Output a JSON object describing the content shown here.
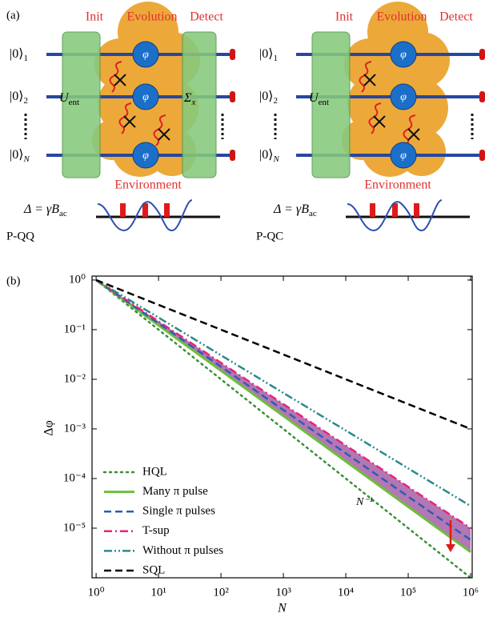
{
  "diagram": {
    "label": "(a)",
    "stages": [
      "Init",
      "Evolution",
      "Detect"
    ],
    "qubits": [
      {
        "ket": "|0⟩",
        "sub": "1"
      },
      {
        "ket": "|0⟩",
        "sub": "2"
      },
      {
        "ket": "|0⟩",
        "sub": "N"
      }
    ],
    "phase": "φ",
    "entangler": {
      "main": "U",
      "sub": "ent"
    },
    "readout": {
      "main": "Σ",
      "sub": "x"
    },
    "environment": "Environment",
    "signal": {
      "main": "Δ = γB",
      "sub": "ac"
    },
    "panels": [
      "P-QQ",
      "P-QC"
    ]
  },
  "chart_data": {
    "type": "line",
    "label": "(b)",
    "xlabel": "N",
    "ylabel": "Δφ",
    "annotation": "N⁻¹",
    "xscale": "log",
    "yscale": "log",
    "legend": "lower left",
    "x": [
      1,
      10,
      100,
      1000,
      10000,
      100000,
      1000000
    ],
    "series": [
      {
        "name": "HQL",
        "color": "#3a8f3a",
        "style": "dotted",
        "values": [
          1,
          0.1,
          0.01,
          0.001,
          0.0001,
          1e-05,
          1e-06
        ]
      },
      {
        "name": "Many π pulse",
        "color": "#6cbf3c",
        "style": "solid",
        "values": [
          1,
          0.122,
          0.0149,
          0.00182,
          0.000222,
          2.7e-05,
          3.3e-06
        ]
      },
      {
        "name": "Single π pulses",
        "color": "#2f5bb7",
        "style": "dashed",
        "values": [
          1,
          0.134,
          0.018,
          0.00241,
          0.000323,
          4.33e-05,
          5.8e-06
        ]
      },
      {
        "name": "T-sup",
        "color": "#e8247a",
        "style": "dashdot",
        "values": [
          1,
          0.147,
          0.0215,
          0.00316,
          0.000464,
          6.8e-05,
          1e-05
        ]
      },
      {
        "name": "Without π pulses",
        "color": "#2a8a8a",
        "style": "dashdotdot",
        "values": [
          1,
          0.175,
          0.0305,
          0.0053,
          0.00093,
          0.00016,
          2.8e-05
        ]
      },
      {
        "name": "SQL",
        "color": "#000000",
        "style": "dashed",
        "values": [
          1,
          0.316,
          0.1,
          0.0316,
          0.01,
          0.00316,
          0.001
        ]
      }
    ],
    "xlim": [
      0.86,
      1060000
    ],
    "ylim": [
      1e-06,
      1.2
    ],
    "xticks": [
      {
        "value": 1,
        "label": "10⁰"
      },
      {
        "value": 10,
        "label": "10¹"
      },
      {
        "value": 100,
        "label": "10²"
      },
      {
        "value": 1000,
        "label": "10³"
      },
      {
        "value": 10000,
        "label": "10⁴"
      },
      {
        "value": 100000,
        "label": "10⁵"
      },
      {
        "value": 1000000,
        "label": "10⁶"
      }
    ],
    "yticks": [
      {
        "value": 1,
        "label": "10⁰"
      },
      {
        "value": 0.1,
        "label": "10⁻¹"
      },
      {
        "value": 0.01,
        "label": "10⁻²"
      },
      {
        "value": 0.001,
        "label": "10⁻³"
      },
      {
        "value": 0.0001,
        "label": "10⁻⁴"
      },
      {
        "value": 1e-05,
        "label": "10⁻⁵"
      }
    ]
  }
}
